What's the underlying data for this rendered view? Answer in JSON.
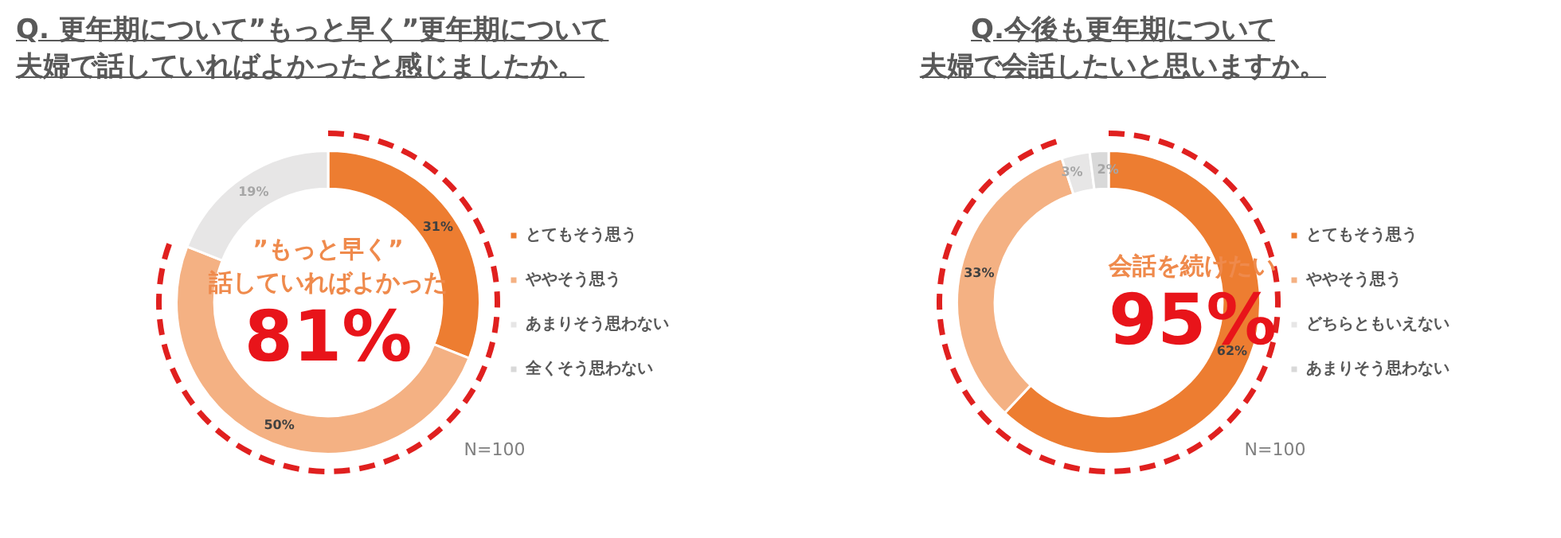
{
  "chart_data": [
    {
      "type": "donut",
      "title": "Q. 更年期について”もっと早く”更年期について",
      "subtitle": "夫婦で話していればよかったと感じましたか。",
      "categories": [
        "とてもそう思う",
        "ややそう思う",
        "あまりそう思わない",
        "全くそう思わない"
      ],
      "values": [
        31,
        50,
        19,
        0
      ],
      "colors": [
        "#ed7d31",
        "#f4b183",
        "#e7e6e6",
        "#d9d9d9"
      ],
      "value_labels": [
        "31%",
        "50%",
        "19%",
        null
      ],
      "legend": "right",
      "annotations": [
        "”もっと早く”",
        "話していればよかった",
        "81%",
        "N=100"
      ]
    },
    {
      "type": "donut",
      "title": "Q.今後も更年期について",
      "subtitle": "夫婦で会話したいと思いますか。",
      "categories": [
        "とてもそう思う",
        "ややそう思う",
        "どちらともいえない",
        "あまりそう思わない"
      ],
      "values": [
        62,
        33,
        3,
        2
      ],
      "colors": [
        "#ed7d31",
        "#f4b183",
        "#e7e6e6",
        "#d9d9d9"
      ],
      "value_labels": [
        "62%",
        "33%",
        "3%",
        "2%"
      ],
      "legend": "right",
      "annotations": [
        "会話を続けたい",
        "95%",
        "N=100"
      ]
    }
  ]
}
